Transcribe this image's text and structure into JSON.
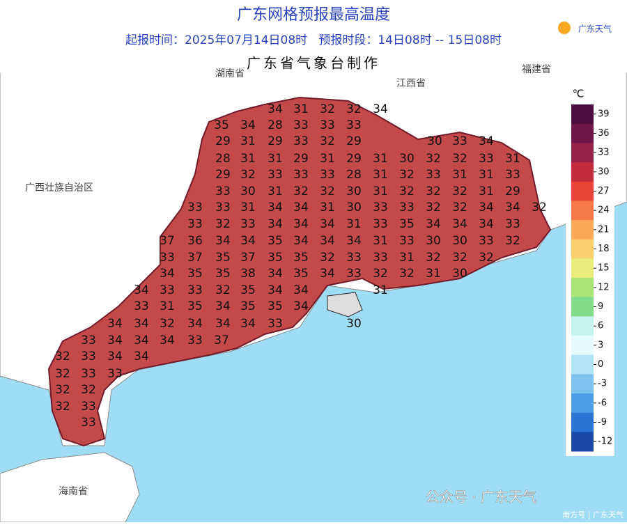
{
  "header": {
    "title": "广东网格预报最高温度",
    "subtitle": "起报时间：2025年07月14日08时   预报时段：14日08时 -- 15日08时",
    "agency": "广东省气象台制作",
    "logo": "广东天气"
  },
  "regions": [
    "湖南省",
    "江西省",
    "福建省",
    "广西壮族自治区",
    "海南省"
  ],
  "temperatures": [
    [
      34,
      31,
      32,
      32,
      34
    ],
    [
      35,
      34,
      28,
      33,
      33,
      33
    ],
    [
      29,
      31,
      29,
      33,
      32,
      29,
      30,
      33,
      34
    ],
    [
      28,
      31,
      31,
      29,
      31,
      29,
      31,
      30,
      32,
      32,
      33,
      31
    ],
    [
      29,
      32,
      33,
      33,
      33,
      28,
      31,
      32,
      33,
      31,
      31,
      33
    ],
    [
      33,
      30,
      31,
      32,
      32,
      30,
      31,
      32,
      32,
      32,
      31,
      29
    ],
    [
      33,
      33,
      31,
      34,
      34,
      31,
      30,
      33,
      33,
      32,
      32,
      34,
      34,
      32
    ],
    [
      33,
      32,
      33,
      34,
      34,
      34,
      31,
      33,
      35,
      34,
      34,
      34,
      33
    ],
    [
      37,
      36,
      34,
      34,
      35,
      34,
      34,
      34,
      31,
      33,
      30,
      30,
      33,
      32
    ],
    [
      33,
      37,
      35,
      37,
      35,
      35,
      32,
      33,
      33,
      31,
      32,
      32,
      32
    ],
    [
      34,
      35,
      35,
      38,
      34,
      35,
      34,
      33,
      32,
      32,
      31,
      30
    ],
    [
      34,
      33,
      33,
      32,
      35,
      34,
      34,
      31
    ],
    [
      33,
      31,
      35,
      34,
      35,
      35,
      34
    ],
    [
      34,
      34,
      32,
      34,
      34,
      34,
      33,
      30
    ],
    [
      33,
      34,
      34,
      34,
      33,
      37
    ],
    [
      32,
      33,
      34,
      34
    ],
    [
      32,
      33,
      33
    ],
    [
      32,
      32
    ],
    [
      32,
      33
    ],
    [
      33
    ]
  ],
  "legend": {
    "unit": "℃",
    "ticks": [
      39,
      36,
      33,
      30,
      27,
      24,
      21,
      18,
      15,
      12,
      9,
      6,
      3,
      0,
      -3,
      -6,
      -9,
      -12
    ],
    "colors": [
      "#4a0c3c",
      "#6e1648",
      "#95204a",
      "#c02c3c",
      "#e8443a",
      "#f57a48",
      "#f9a85a",
      "#fbd06c",
      "#e8ec78",
      "#a8e476",
      "#80dc88",
      "#c8f4ee",
      "#e6fbfb",
      "#b4e2f6",
      "#7cc4ee",
      "#4c9ee6",
      "#2c74d4",
      "#1848a8"
    ]
  },
  "watermark": "公众号 · 广东天气",
  "footer": "南方号 | 广东天气"
}
